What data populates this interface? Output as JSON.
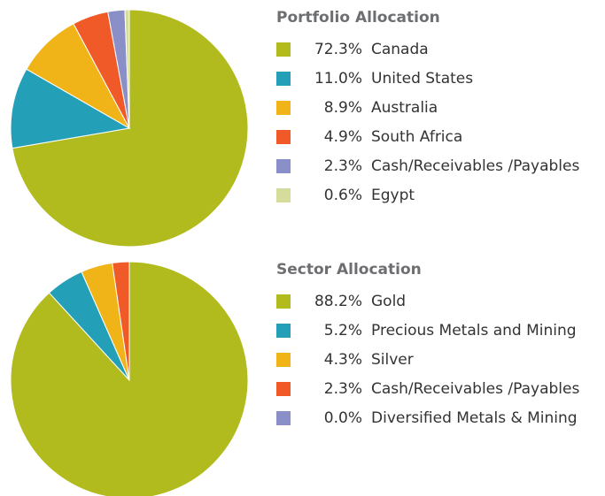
{
  "chart_data": [
    {
      "type": "pie",
      "title": "Portfolio Allocation",
      "categories": [
        "Canada",
        "United States",
        "Australia",
        "South Africa",
        "Cash/Receivables /Payables",
        "Egypt"
      ],
      "values": [
        72.3,
        11.0,
        8.9,
        4.9,
        2.3,
        0.6
      ],
      "value_labels": [
        "72.3%",
        "11.0%",
        "8.9%",
        "4.9%",
        "2.3%",
        "0.6%"
      ],
      "colors": [
        "#b2bb1e",
        "#23a0b8",
        "#f0b418",
        "#f05a28",
        "#8b8fc8",
        "#d5dc9c"
      ]
    },
    {
      "type": "pie",
      "title": "Sector Allocation",
      "categories": [
        "Gold",
        "Precious Metals and Mining",
        "Silver",
        "Cash/Receivables /Payables",
        "Diversified Metals & Mining"
      ],
      "values": [
        88.2,
        5.2,
        4.3,
        2.3,
        0.0
      ],
      "value_labels": [
        "88.2%",
        "5.2%",
        "4.3%",
        "2.3%",
        "0.0%"
      ],
      "colors": [
        "#b2bb1e",
        "#23a0b8",
        "#f0b418",
        "#f05a28",
        "#8b8fc8"
      ]
    }
  ]
}
